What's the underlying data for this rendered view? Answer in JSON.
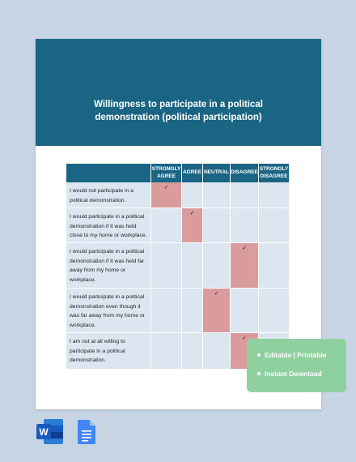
{
  "title": [
    "Willingness to participate in a political",
    "demonstration (political participation)"
  ],
  "table": {
    "columns": [
      "STRONGLY AGREE",
      "AGREE",
      "NEUTRAL",
      "DISAGREE",
      "STRONGLY DISAGREE"
    ],
    "check": "✓",
    "rows": [
      {
        "statement": [
          "I would not participate in a",
          "political demonstration."
        ],
        "response": 0
      },
      {
        "statement": [
          "I would participate in a political",
          "demonstration if it was held",
          "close to my home or workplace."
        ],
        "response": 1
      },
      {
        "statement": [
          "I would participate in a political",
          "demonstration if it was held far",
          "away from my home or",
          "workplace."
        ],
        "response": 3
      },
      {
        "statement": [
          "I would participate in a political",
          "demonstration even though it",
          "was far away from my home or",
          "workplace."
        ],
        "response": 2
      },
      {
        "statement": [
          "I am not at all willing to",
          "participate in a political",
          "demonstration."
        ],
        "response": 3
      }
    ]
  },
  "features": [
    "Editable | Printable",
    "Instant Download"
  ],
  "word_icon_letter": "W"
}
